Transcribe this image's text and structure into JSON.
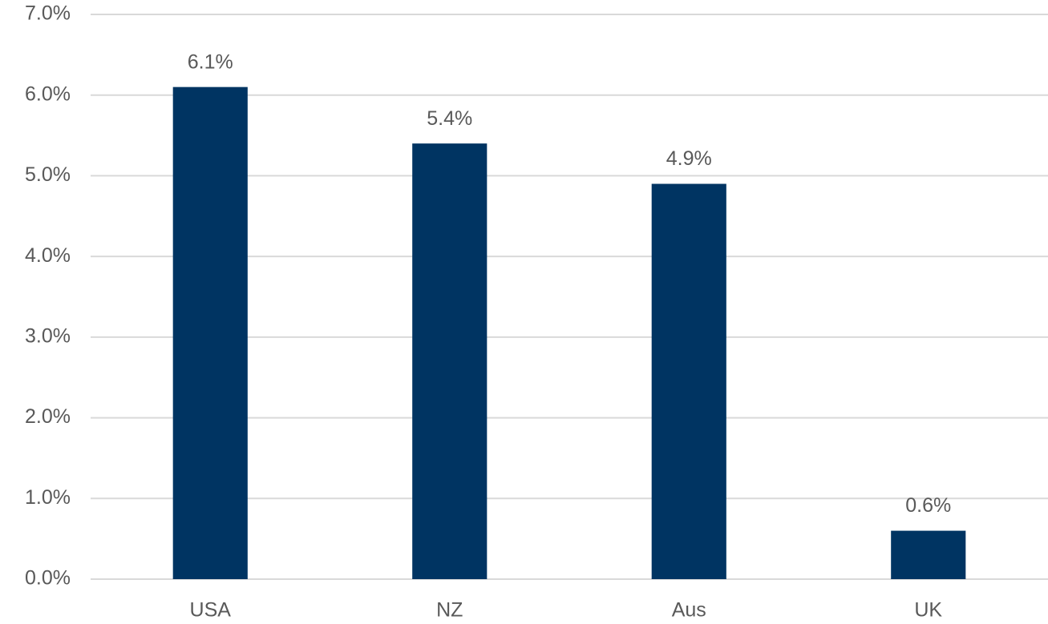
{
  "chart_data": {
    "type": "bar",
    "categories": [
      "USA",
      "NZ",
      "Aus",
      "UK"
    ],
    "values": [
      6.1,
      5.4,
      4.9,
      0.6
    ],
    "value_labels": [
      "6.1%",
      "5.4%",
      "4.9%",
      "0.6%"
    ],
    "color": "#003462",
    "ylim": [
      0,
      7
    ],
    "yticks": [
      {
        "value": 0,
        "label": "0.0%"
      },
      {
        "value": 1,
        "label": "1.0%"
      },
      {
        "value": 2,
        "label": "2.0%"
      },
      {
        "value": 3,
        "label": "3.0%"
      },
      {
        "value": 4,
        "label": "4.0%"
      },
      {
        "value": 5,
        "label": "5.0%"
      },
      {
        "value": 6,
        "label": "6.0%"
      },
      {
        "value": 7,
        "label": "7.0%"
      }
    ],
    "grid": true
  }
}
